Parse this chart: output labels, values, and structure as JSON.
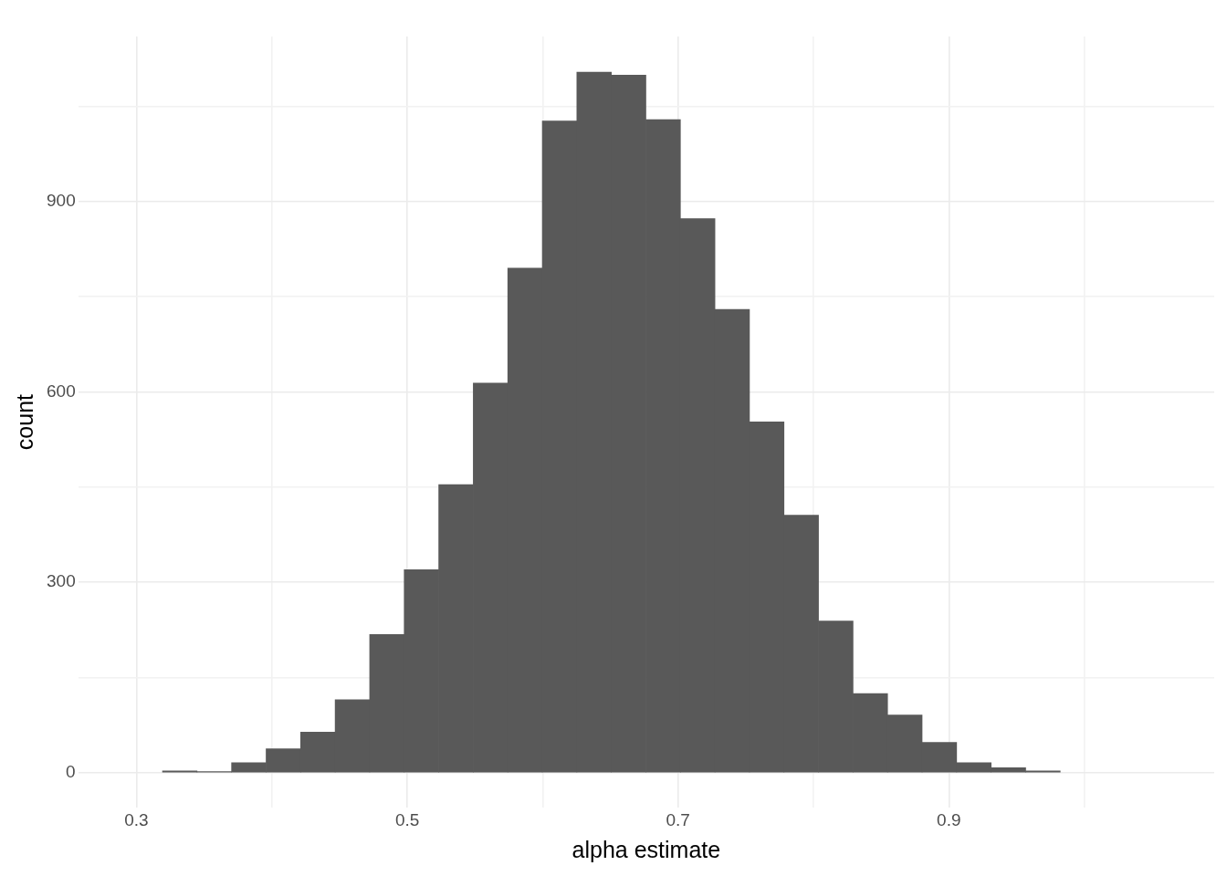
{
  "chart_data": {
    "type": "histogram",
    "xlabel": "alpha estimate",
    "ylabel": "count",
    "color": "#595959",
    "bins": [
      0.319,
      0.345,
      0.37,
      0.396,
      0.421,
      0.447,
      0.472,
      0.498,
      0.523,
      0.549,
      0.574,
      0.6,
      0.625,
      0.651,
      0.676,
      0.702,
      0.727,
      0.753,
      0.778,
      0.804,
      0.829,
      0.855,
      0.88,
      0.906,
      0.931,
      0.957,
      0.982
    ],
    "values": [
      3,
      2,
      16,
      38,
      64,
      115,
      218,
      320,
      454,
      614,
      795,
      1027,
      1104,
      1099,
      1029,
      873,
      730,
      553,
      406,
      239,
      125,
      91,
      48,
      16,
      8,
      3
    ],
    "xlim": [
      0.257,
      1.096
    ],
    "ylim": [
      -55,
      1160
    ],
    "xticks": [
      0.3,
      {
        "value": 0.4,
        "label": null
      },
      0.5,
      {
        "value": 0.6,
        "label": null
      },
      0.7,
      {
        "value": 0.8,
        "label": null
      },
      0.9,
      {
        "value": 1.0,
        "label": null
      }
    ],
    "yticks": [
      0,
      {
        "value": 150,
        "label": null
      },
      300,
      {
        "value": 450,
        "label": null
      },
      600,
      {
        "value": 750,
        "label": null
      },
      900,
      {
        "value": 1050,
        "label": null
      }
    ],
    "grid": true,
    "legend": false
  }
}
